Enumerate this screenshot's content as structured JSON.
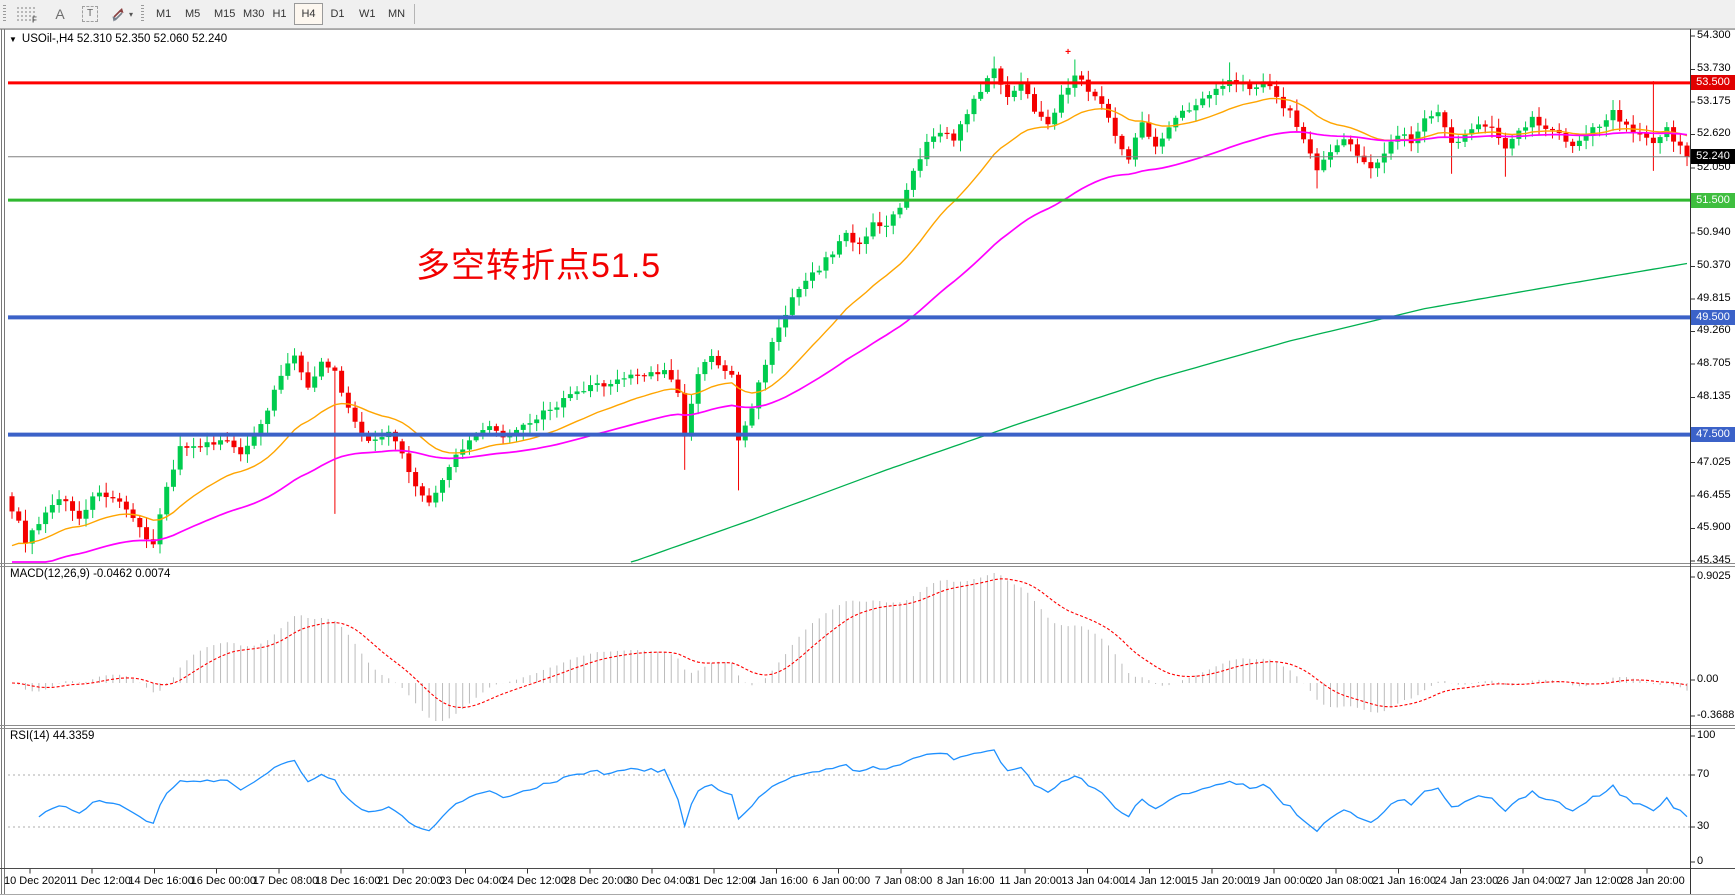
{
  "window": {
    "title": "USOil-,H4  52.310 52.350 52.060 52.240"
  },
  "toolbar": {
    "tools": [
      {
        "id": "fibonacci-grid",
        "glyph": "F",
        "kind": "grid"
      },
      {
        "id": "text",
        "glyph": "A",
        "kind": "letter"
      },
      {
        "id": "text-label",
        "glyph": "T",
        "kind": "boxed"
      },
      {
        "id": "arrows",
        "glyph": "▾",
        "kind": "arrows"
      }
    ],
    "timeframes": [
      "M1",
      "M5",
      "M15",
      "M30",
      "H1",
      "H4",
      "D1",
      "W1",
      "MN"
    ],
    "active_timeframe": "H4"
  },
  "annotation": {
    "text": "多空转折点51.5",
    "color": "#F20000"
  },
  "panes": {
    "macd": {
      "label": "MACD(12,26,9) -0.0462 0.0074",
      "axis": [
        "0.9025",
        "0.00",
        "-0.3688"
      ]
    },
    "rsi": {
      "label": "RSI(14) 44.3359",
      "axis": [
        "100",
        "70",
        "30",
        "0"
      ]
    }
  },
  "price_axis": {
    "ticks": [
      "54.300",
      "53.730",
      "53.175",
      "52.620",
      "52.050",
      "50.940",
      "50.370",
      "49.815",
      "49.260",
      "48.705",
      "48.135",
      "47.025",
      "46.455",
      "45.900",
      "45.345"
    ],
    "badges": [
      {
        "label": "53.500",
        "value": 53.5,
        "color": "#E00000",
        "line_color": "#FF0000",
        "line_width": 3,
        "current": false
      },
      {
        "label": "52.240",
        "value": 52.24,
        "color": "#000000",
        "line_color": "#808080",
        "line_width": 1,
        "current": true
      },
      {
        "label": "51.500",
        "value": 51.5,
        "color": "#3FBE3F",
        "line_color": "#2FB82F",
        "line_width": 3,
        "current": false
      },
      {
        "label": "49.500",
        "value": 49.5,
        "color": "#3B62C8",
        "line_color": "#3B62C8",
        "line_width": 4,
        "current": false
      },
      {
        "label": "47.500",
        "value": 47.5,
        "color": "#3B62C8",
        "line_color": "#3B62C8",
        "line_width": 4,
        "current": false
      }
    ]
  },
  "time_axis": [
    "10 Dec 2020",
    "11 Dec 12:00",
    "14 Dec 16:00",
    "16 Dec 00:00",
    "17 Dec 08:00",
    "18 Dec 16:00",
    "21 Dec 20:00",
    "23 Dec 04:00",
    "24 Dec 12:00",
    "28 Dec 20:00",
    "30 Dec 04:00",
    "31 Dec 12:00",
    "4 Jan 16:00",
    "6 Jan 00:00",
    "7 Jan 08:00",
    "8 Jan 16:00",
    "11 Jan 20:00",
    "13 Jan 04:00",
    "14 Jan 12:00",
    "15 Jan 20:00",
    "19 Jan 00:00",
    "20 Jan 08:00",
    "21 Jan 16:00",
    "24 Jan 23:00",
    "26 Jan 04:00",
    "27 Jan 12:00",
    "28 Jan 20:00"
  ],
  "chart_data": {
    "type": "candlestick",
    "symbol": "USOil-",
    "period": "H4",
    "title": "USOil-,H4",
    "ohlc_current": {
      "open": 52.31,
      "high": 52.35,
      "low": 52.06,
      "close": 52.24
    },
    "price_range_visible": [
      45.345,
      54.3
    ],
    "bars": 250,
    "up_color": "#00CC4E",
    "down_color": "#F40000",
    "close_waypoints": [
      [
        0,
        46.25
      ],
      [
        2,
        45.7
      ],
      [
        4,
        45.95
      ],
      [
        7,
        46.45
      ],
      [
        10,
        46.1
      ],
      [
        13,
        46.55
      ],
      [
        16,
        46.3
      ],
      [
        19,
        45.9
      ],
      [
        21,
        45.65
      ],
      [
        23,
        46.6
      ],
      [
        25,
        47.3
      ],
      [
        28,
        47.25
      ],
      [
        31,
        47.45
      ],
      [
        34,
        47.2
      ],
      [
        37,
        47.65
      ],
      [
        40,
        48.5
      ],
      [
        42,
        48.85
      ],
      [
        44,
        48.25
      ],
      [
        46,
        48.8
      ],
      [
        48,
        48.55
      ],
      [
        50,
        47.95
      ],
      [
        53,
        47.35
      ],
      [
        56,
        47.55
      ],
      [
        58,
        47.15
      ],
      [
        60,
        46.6
      ],
      [
        62,
        46.35
      ],
      [
        64,
        46.75
      ],
      [
        66,
        47.15
      ],
      [
        68,
        47.45
      ],
      [
        71,
        47.6
      ],
      [
        74,
        47.45
      ],
      [
        77,
        47.7
      ],
      [
        80,
        47.95
      ],
      [
        83,
        48.15
      ],
      [
        86,
        48.3
      ],
      [
        89,
        48.4
      ],
      [
        92,
        48.5
      ],
      [
        95,
        48.55
      ],
      [
        97,
        48.6
      ],
      [
        99,
        48.2
      ],
      [
        100,
        47.45
      ],
      [
        102,
        48.55
      ],
      [
        104,
        48.85
      ],
      [
        106,
        48.55
      ],
      [
        107,
        48.5
      ],
      [
        108,
        47.4
      ],
      [
        110,
        47.95
      ],
      [
        112,
        48.75
      ],
      [
        114,
        49.35
      ],
      [
        116,
        49.8
      ],
      [
        118,
        50.1
      ],
      [
        120,
        50.35
      ],
      [
        122,
        50.6
      ],
      [
        124,
        50.95
      ],
      [
        126,
        50.7
      ],
      [
        128,
        51.15
      ],
      [
        130,
        51.05
      ],
      [
        132,
        51.35
      ],
      [
        134,
        51.95
      ],
      [
        136,
        52.45
      ],
      [
        138,
        52.7
      ],
      [
        140,
        52.55
      ],
      [
        142,
        52.95
      ],
      [
        144,
        53.4
      ],
      [
        146,
        53.7
      ],
      [
        148,
        53.3
      ],
      [
        150,
        53.5
      ],
      [
        152,
        53.05
      ],
      [
        154,
        52.85
      ],
      [
        156,
        53.25
      ],
      [
        158,
        53.65
      ],
      [
        160,
        53.4
      ],
      [
        162,
        53.15
      ],
      [
        164,
        52.6
      ],
      [
        166,
        52.25
      ],
      [
        168,
        52.8
      ],
      [
        170,
        52.45
      ],
      [
        172,
        52.75
      ],
      [
        174,
        53.0
      ],
      [
        176,
        53.1
      ],
      [
        178,
        53.3
      ],
      [
        181,
        53.6
      ],
      [
        184,
        53.4
      ],
      [
        186,
        53.55
      ],
      [
        188,
        53.25
      ],
      [
        190,
        53.0
      ],
      [
        192,
        52.55
      ],
      [
        194,
        52.05
      ],
      [
        196,
        52.3
      ],
      [
        198,
        52.55
      ],
      [
        200,
        52.25
      ],
      [
        202,
        52.1
      ],
      [
        204,
        52.3
      ],
      [
        206,
        52.65
      ],
      [
        208,
        52.5
      ],
      [
        210,
        52.85
      ],
      [
        212,
        52.95
      ],
      [
        214,
        52.45
      ],
      [
        216,
        52.6
      ],
      [
        218,
        52.85
      ],
      [
        220,
        52.7
      ],
      [
        222,
        52.4
      ],
      [
        224,
        52.7
      ],
      [
        226,
        52.9
      ],
      [
        228,
        52.75
      ],
      [
        230,
        52.65
      ],
      [
        232,
        52.45
      ],
      [
        234,
        52.6
      ],
      [
        236,
        52.8
      ],
      [
        238,
        53.0
      ],
      [
        240,
        52.8
      ],
      [
        242,
        52.6
      ],
      [
        244,
        52.5
      ],
      [
        246,
        52.7
      ],
      [
        248,
        52.4
      ],
      [
        249,
        52.24
      ]
    ],
    "wick_overrides": {
      "48": {
        "low": 46.15
      },
      "62": {
        "low": 46.28
      },
      "100": {
        "low": 46.9
      },
      "108": {
        "low": 46.55
      },
      "146": {
        "high": 53.95
      },
      "158": {
        "high": 53.9
      },
      "181": {
        "high": 53.85
      },
      "194": {
        "low": 51.7
      },
      "214": {
        "low": 51.95
      },
      "222": {
        "low": 51.9
      },
      "244": {
        "high": 53.53,
        "low": 52.0
      }
    },
    "first_open": 46.45,
    "final_close": 52.24,
    "moving_averages": [
      {
        "name": "fast-ma",
        "style": "ema",
        "period": 21,
        "seed": 45.55,
        "color": "#FFA500",
        "width": 1.4
      },
      {
        "name": "mid-ma",
        "style": "ema",
        "period": 55,
        "seed": 45.15,
        "color": "#FF00FF",
        "width": 1.7
      },
      {
        "name": "slow-ma",
        "style": "waypoints",
        "color": "#00B050",
        "width": 1.3,
        "points": [
          [
            92,
            45.32
          ],
          [
            110,
            46.05
          ],
          [
            130,
            46.9
          ],
          [
            150,
            47.7
          ],
          [
            170,
            48.45
          ],
          [
            190,
            49.1
          ],
          [
            210,
            49.65
          ],
          [
            230,
            50.05
          ],
          [
            249,
            50.42
          ]
        ]
      }
    ],
    "indicators": {
      "macd": {
        "fast": 12,
        "slow": 26,
        "signal": 9,
        "hist_color": "#BBBBBB",
        "signal_color": "#FF0000",
        "current_values": "-0.0462 0.0074"
      },
      "rsi": {
        "period": 14,
        "color": "#1E90FF",
        "levels": [
          70,
          30
        ],
        "current_value": 44.3359
      }
    },
    "marker": {
      "bar": 157,
      "price": 53.98,
      "glyph": "+",
      "color": "#FF0000"
    }
  }
}
